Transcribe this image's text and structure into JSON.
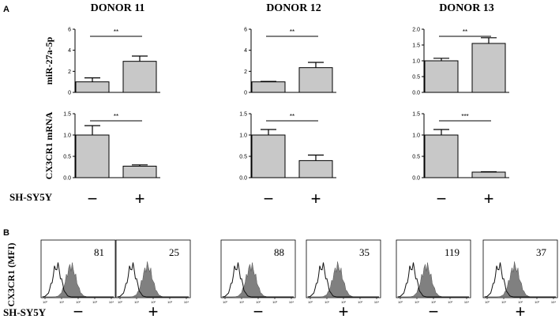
{
  "panel_labels": [
    "A",
    "B"
  ],
  "treatment_label": "SH-SY5Y",
  "condition_symbols": [
    "−",
    "+"
  ],
  "colors": {
    "bar_fill": "#c8c8c8",
    "axis": "#000000",
    "histogram_fill": "#808080"
  },
  "chart_data": [
    {
      "type": "bar",
      "donor": "DONOR 11",
      "ylabel": "miR-27a-5p",
      "categories": [
        "−",
        "+"
      ],
      "values": [
        1.0,
        2.95
      ],
      "errors": [
        0.38,
        0.5
      ],
      "ylim": [
        0,
        6
      ],
      "yticks": [
        "0",
        "2",
        "4",
        "6"
      ],
      "significance": "**"
    },
    {
      "type": "bar",
      "donor": "DONOR 12",
      "ylabel": "",
      "categories": [
        "−",
        "+"
      ],
      "values": [
        1.0,
        2.35
      ],
      "errors": [
        0.04,
        0.5
      ],
      "ylim": [
        0,
        6
      ],
      "yticks": [
        "0",
        "2",
        "4",
        "6"
      ],
      "significance": "**"
    },
    {
      "type": "bar",
      "donor": "DONOR 13",
      "ylabel": "",
      "categories": [
        "−",
        "+"
      ],
      "values": [
        1.0,
        1.55
      ],
      "errors": [
        0.08,
        0.18
      ],
      "ylim": [
        0,
        2.0
      ],
      "yticks": [
        "0.0",
        "0.5",
        "1.0",
        "1.5",
        "2.0"
      ],
      "significance": "**"
    },
    {
      "type": "bar",
      "donor": "DONOR 11",
      "ylabel": "CX3CR1 mRNA",
      "categories": [
        "−",
        "+"
      ],
      "values": [
        1.0,
        0.27
      ],
      "errors": [
        0.22,
        0.03
      ],
      "ylim": [
        0,
        1.5
      ],
      "yticks": [
        "0.0",
        "0.5",
        "1.0",
        "1.5"
      ],
      "significance": "**"
    },
    {
      "type": "bar",
      "donor": "DONOR 12",
      "ylabel": "",
      "categories": [
        "−",
        "+"
      ],
      "values": [
        1.0,
        0.4
      ],
      "errors": [
        0.13,
        0.13
      ],
      "ylim": [
        0,
        1.5
      ],
      "yticks": [
        "0.0",
        "0.5",
        "1.0",
        "1.5"
      ],
      "significance": "**"
    },
    {
      "type": "bar",
      "donor": "DONOR 13",
      "ylabel": "",
      "categories": [
        "−",
        "+"
      ],
      "values": [
        1.0,
        0.13
      ],
      "errors": [
        0.13,
        0.01
      ],
      "ylim": [
        0,
        1.5
      ],
      "yticks": [
        "0.0",
        "0.5",
        "1.0",
        "1.5"
      ],
      "significance": "***"
    }
  ],
  "flow_cytometry": {
    "ylabel": "CX3CR1 (MFI)",
    "x_ticks": [
      "10⁰",
      "10¹",
      "10²",
      "10³",
      "10⁴"
    ],
    "mfi": [
      {
        "donor": "DONOR 11",
        "condition": "−",
        "value": "81"
      },
      {
        "donor": "DONOR 11",
        "condition": "+",
        "value": "25"
      },
      {
        "donor": "DONOR 12",
        "condition": "−",
        "value": "88"
      },
      {
        "donor": "DONOR 12",
        "condition": "+",
        "value": "35"
      },
      {
        "donor": "DONOR 13",
        "condition": "−",
        "value": "119"
      },
      {
        "donor": "DONOR 13",
        "condition": "+",
        "value": "37"
      }
    ]
  }
}
